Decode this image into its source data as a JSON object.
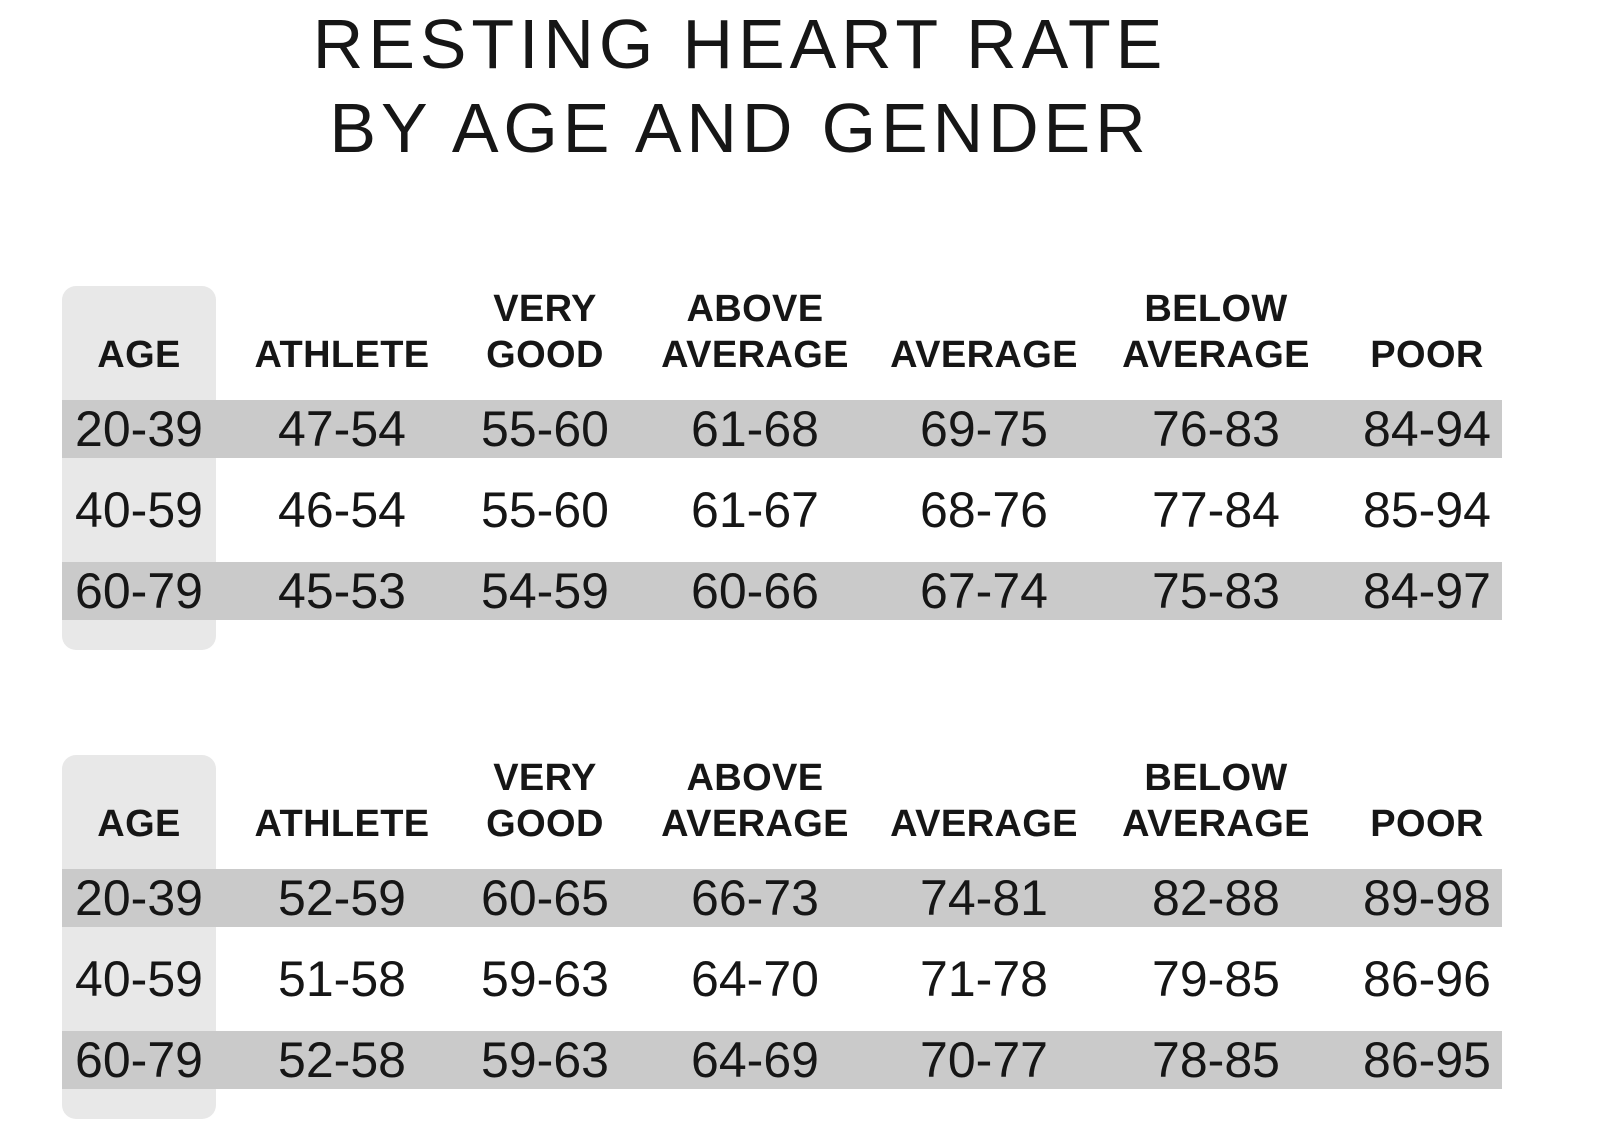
{
  "title": {
    "line1": "RESTING HEART RATE",
    "line2": "BY AGE AND GENDER"
  },
  "colors": {
    "background": "#ffffff",
    "age_column_bg": "#e8e8e8",
    "row_stripe": "#cacaca",
    "text": "#161616"
  },
  "tables": [
    {
      "header": [
        "AGE",
        "ATHLETE",
        "VERY\nGOOD",
        "ABOVE\nAVERAGE",
        "AVERAGE",
        "BELOW\nAVERAGE",
        "POOR"
      ],
      "rows": [
        [
          "20-39",
          "47-54",
          "55-60",
          "61-68",
          "69-75",
          "76-83",
          "84-94"
        ],
        [
          "40-59",
          "46-54",
          "55-60",
          "61-67",
          "68-76",
          "77-84",
          "85-94"
        ],
        [
          "60-79",
          "45-53",
          "54-59",
          "60-66",
          "67-74",
          "75-83",
          "84-97"
        ]
      ]
    },
    {
      "header": [
        "AGE",
        "ATHLETE",
        "VERY\nGOOD",
        "ABOVE\nAVERAGE",
        "AVERAGE",
        "BELOW\nAVERAGE",
        "POOR"
      ],
      "rows": [
        [
          "20-39",
          "52-59",
          "60-65",
          "66-73",
          "74-81",
          "82-88",
          "89-98"
        ],
        [
          "40-59",
          "51-58",
          "59-63",
          "64-70",
          "71-78",
          "79-85",
          "86-96"
        ],
        [
          "60-79",
          "52-58",
          "59-63",
          "64-69",
          "70-77",
          "78-85",
          "86-95"
        ]
      ]
    }
  ],
  "chart_data": [
    {
      "type": "table",
      "title": "RESTING HEART RATE BY AGE AND GENDER",
      "columns": [
        "AGE",
        "ATHLETE",
        "VERY GOOD",
        "ABOVE AVERAGE",
        "AVERAGE",
        "BELOW AVERAGE",
        "POOR"
      ],
      "rows": [
        [
          "20-39",
          "47-54",
          "55-60",
          "61-68",
          "69-75",
          "76-83",
          "84-94"
        ],
        [
          "40-59",
          "46-54",
          "55-60",
          "61-67",
          "68-76",
          "77-84",
          "85-94"
        ],
        [
          "60-79",
          "45-53",
          "54-59",
          "60-66",
          "67-74",
          "75-83",
          "84-97"
        ]
      ]
    },
    {
      "type": "table",
      "title": "RESTING HEART RATE BY AGE AND GENDER",
      "columns": [
        "AGE",
        "ATHLETE",
        "VERY GOOD",
        "ABOVE AVERAGE",
        "AVERAGE",
        "BELOW AVERAGE",
        "POOR"
      ],
      "rows": [
        [
          "20-39",
          "52-59",
          "60-65",
          "66-73",
          "74-81",
          "82-88",
          "89-98"
        ],
        [
          "40-59",
          "51-58",
          "59-63",
          "64-70",
          "71-78",
          "79-85",
          "86-96"
        ],
        [
          "60-79",
          "52-58",
          "59-63",
          "64-69",
          "70-77",
          "78-85",
          "86-95"
        ]
      ]
    }
  ]
}
